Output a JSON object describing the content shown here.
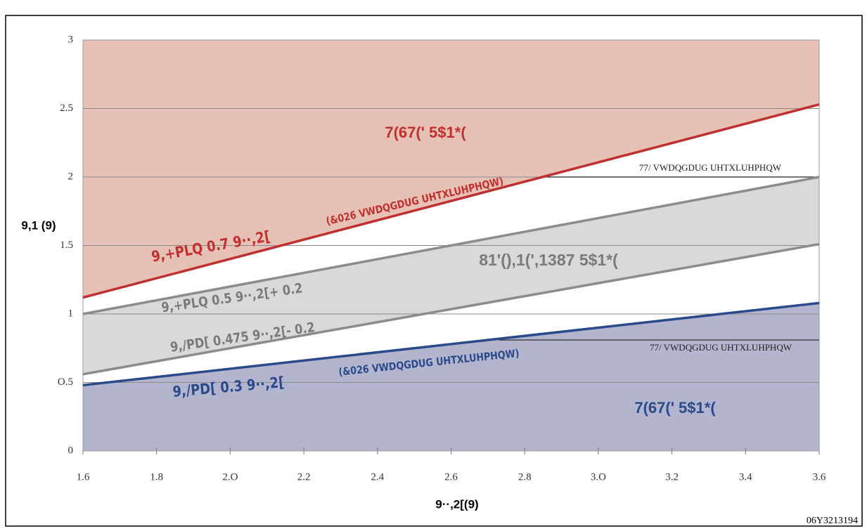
{
  "chart_data": {
    "type": "line",
    "x": [
      1.6,
      3.6
    ],
    "series": [
      {
        "color": "#c0302f",
        "values": [
          1.12,
          2.53
        ],
        "fill": "#e8c1b6",
        "fill_to": "top"
      },
      {
        "color": "#8c8c8c",
        "values": [
          1.0,
          2.0
        ]
      },
      {
        "color": "#8c8c8c",
        "values": [
          0.56,
          1.51
        ]
      },
      {
        "color": "#2b4a8a",
        "values": [
          0.48,
          1.08
        ],
        "fill": "#b3b5cf",
        "fill_to": "bottom"
      }
    ],
    "band": {
      "between": [
        1,
        2
      ],
      "color": "#d9d9db"
    },
    "xlim": [
      1.6,
      3.6
    ],
    "xticks": [
      1.6,
      1.8,
      {
        "value": 2.0,
        "label": "2.O"
      },
      2.2,
      2.4,
      2.6,
      2.8,
      {
        "value": 3.0,
        "label": "3.O"
      },
      3.2,
      3.4,
      3.6
    ],
    "ylim": [
      0,
      3
    ],
    "yticks": [
      0,
      {
        "value": 0.5,
        "label": "O.5"
      },
      1,
      1.5,
      2,
      2.5,
      3
    ],
    "grid": true,
    "xlabel": "9··,2[(9)",
    "ylabel": "9,1 (9)",
    "annotations": [
      {
        "text": "7(67(' 5$1*(",
        "color": "#c0302f"
      },
      {
        "text": "(&026 VWDQGDUG UHTXLUHPHQW)",
        "color": "#c0302f"
      },
      {
        "text": "9,+PLQ  0.7 9··,2[",
        "color": "#c0302f"
      },
      {
        "text": "77/ VWDQGDUG UHTXLUHPHQW",
        "color": "#222222"
      },
      {
        "text": "81'(),1(',1387 5$1*(",
        "color": "#7a7a7a"
      },
      {
        "text": "9,+PLQ  0.5 9··,2[+ 0.2",
        "color": "#7a7a7a"
      },
      {
        "text": "9,/PD[  0.475 9··,2[- 0.2",
        "color": "#7a7a7a"
      },
      {
        "text": "77/ VWDQGDUG UHTXLUHPHQW",
        "color": "#222222"
      },
      {
        "text": "(&026 VWDQGDUG UHTXLUHPHQW)",
        "color": "#2b4a8a"
      },
      {
        "text": "9,/PD[  0.3 9··,2[",
        "color": "#2b4a8a"
      },
      {
        "text": "7(67(' 5$1*(",
        "color": "#2b4a8a"
      }
    ],
    "ttl_lines": [
      {
        "x": [
          2.86,
          3.6
        ],
        "y": 2.0
      },
      {
        "x": [
          2.73,
          3.6
        ],
        "y": 0.81
      }
    ],
    "footnote": "06Y3213194"
  }
}
